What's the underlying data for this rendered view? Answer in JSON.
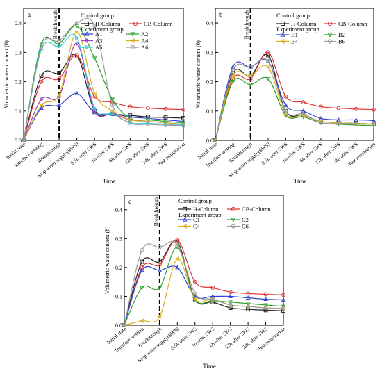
{
  "figure": {
    "x_categories": [
      "Initial state",
      "Interface wetting",
      "Breakthrough",
      "Stop water supply(SWS)",
      "0.5h after SWS",
      "1h after SWS",
      "6h after SWS",
      "12h after SWS",
      "24h after SWS",
      "Test termination"
    ],
    "y_ticks": [
      "0.0",
      "0.1",
      "0.2",
      "0.3",
      "0.4"
    ],
    "ylabel": "Volumetric water content (θ)",
    "xlabel": "Time",
    "breakthrough_label": "Breakthrough",
    "control_title": "Control group",
    "experiment_title": "Experiment group"
  },
  "chart_data": [
    {
      "type": "line",
      "panel_label": "a",
      "categories": [
        "Initial state",
        "Interface wetting",
        "Breakthrough",
        "Stop water supply(SWS)",
        "0.5h after SWS",
        "1h after SWS",
        "6h after SWS",
        "12h after SWS",
        "24h after SWS",
        "Test termination"
      ],
      "ylim": [
        0,
        0.45
      ],
      "ylabel": "Volumetric water content (θ)",
      "xlabel": "Time",
      "breakthrough_at": "Breakthrough",
      "legend_placement": "top-right",
      "series": [
        {
          "name": "H-Column",
          "group": "control",
          "color": "#222222",
          "marker": "square",
          "values": [
            0.0,
            0.22,
            0.23,
            0.29,
            0.1,
            0.09,
            0.085,
            0.08,
            0.078,
            0.076
          ]
        },
        {
          "name": "CB-Column",
          "group": "control",
          "color": "#e03030",
          "marker": "circle",
          "values": [
            0.0,
            0.2,
            0.21,
            0.29,
            0.15,
            0.13,
            0.115,
            0.11,
            0.107,
            0.105
          ]
        },
        {
          "name": "A1",
          "group": "experiment",
          "color": "#2f3fd0",
          "marker": "triangle-up",
          "values": [
            0.0,
            0.11,
            0.12,
            0.16,
            0.095,
            0.09,
            0.08,
            0.075,
            0.07,
            0.065
          ]
        },
        {
          "name": "A2",
          "group": "experiment",
          "color": "#2ca02c",
          "marker": "triangle-down",
          "values": [
            0.0,
            0.33,
            0.33,
            0.39,
            0.28,
            0.14,
            0.075,
            0.07,
            0.065,
            0.06
          ]
        },
        {
          "name": "A3",
          "group": "experiment",
          "color": "#a040c0",
          "marker": "diamond",
          "values": [
            0.0,
            0.14,
            0.15,
            0.33,
            0.1,
            0.09,
            0.07,
            0.065,
            0.06,
            0.055
          ]
        },
        {
          "name": "A4",
          "group": "experiment",
          "color": "#d8b020",
          "marker": "triangle-left",
          "values": [
            0.0,
            0.12,
            0.155,
            0.37,
            0.16,
            0.1,
            0.07,
            0.065,
            0.06,
            0.055
          ]
        },
        {
          "name": "A5",
          "group": "experiment",
          "color": "#30c8d8",
          "marker": "triangle-right",
          "values": [
            0.0,
            0.31,
            0.32,
            0.35,
            0.11,
            0.09,
            0.06,
            0.058,
            0.055,
            0.053
          ]
        },
        {
          "name": "A6",
          "group": "experiment",
          "color": "#999999",
          "marker": "hexagon",
          "values": [
            0.0,
            0.32,
            0.34,
            0.4,
            0.39,
            0.12,
            0.06,
            0.055,
            0.052,
            0.05
          ]
        }
      ]
    },
    {
      "type": "line",
      "panel_label": "b",
      "categories": [
        "Initial state",
        "Interface wetting",
        "Breakthrough",
        "Stop water supply(SWS)",
        "0.5h after SWS",
        "1h after SWS",
        "6h after SWS",
        "12h after SWS",
        "24h after SWS",
        "Test termination"
      ],
      "ylim": [
        0,
        0.45
      ],
      "ylabel": "Volumetric water content (θ)",
      "xlabel": "Time",
      "breakthrough_at": "Breakthrough",
      "legend_placement": "top-right",
      "series": [
        {
          "name": "H-Column",
          "group": "control",
          "color": "#222222",
          "marker": "square",
          "values": [
            0.0,
            0.23,
            0.22,
            0.29,
            0.1,
            0.085,
            0.065,
            0.06,
            0.058,
            0.056
          ]
        },
        {
          "name": "CB-Column",
          "group": "control",
          "color": "#e03030",
          "marker": "circle",
          "values": [
            0.0,
            0.21,
            0.21,
            0.3,
            0.15,
            0.13,
            0.115,
            0.11,
            0.107,
            0.105
          ]
        },
        {
          "name": "B1",
          "group": "experiment",
          "color": "#2f3fd0",
          "marker": "triangle-up",
          "values": [
            0.0,
            0.25,
            0.25,
            0.27,
            0.12,
            0.1,
            0.075,
            0.07,
            0.07,
            0.068
          ]
        },
        {
          "name": "B2",
          "group": "experiment",
          "color": "#2ca02c",
          "marker": "triangle-down",
          "values": [
            0.0,
            0.2,
            0.19,
            0.21,
            0.085,
            0.08,
            0.06,
            0.055,
            0.052,
            0.05
          ]
        },
        {
          "name": "B4",
          "group": "experiment",
          "color": "#d8b020",
          "marker": "triangle-left",
          "values": [
            0.0,
            0.22,
            0.22,
            0.25,
            0.09,
            0.085,
            0.065,
            0.06,
            0.058,
            0.056
          ]
        },
        {
          "name": "B6",
          "group": "experiment",
          "color": "#999999",
          "marker": "hexagon",
          "values": [
            0.0,
            0.24,
            0.25,
            0.27,
            0.1,
            0.09,
            0.06,
            0.058,
            0.056,
            0.055
          ]
        }
      ]
    },
    {
      "type": "line",
      "panel_label": "c",
      "categories": [
        "Initial state",
        "Interface wetting",
        "Breakthrough",
        "Stop water supply(SWS)",
        "0.5h after SWS",
        "1h after SWS",
        "6h after SWS",
        "12h after SWS",
        "24h after SWS",
        "Test termination"
      ],
      "ylim": [
        0,
        0.45
      ],
      "ylabel": "Volumetric water content (θ)",
      "xlabel": "Time",
      "breakthrough_at": "Breakthrough",
      "legend_placement": "top-left",
      "series": [
        {
          "name": "H-Column",
          "group": "control",
          "color": "#222222",
          "marker": "square",
          "values": [
            0.0,
            0.22,
            0.22,
            0.29,
            0.09,
            0.08,
            0.06,
            0.055,
            0.052,
            0.05
          ]
        },
        {
          "name": "CB-Column",
          "group": "control",
          "color": "#e03030",
          "marker": "circle",
          "values": [
            0.0,
            0.2,
            0.21,
            0.295,
            0.15,
            0.13,
            0.115,
            0.11,
            0.107,
            0.105
          ]
        },
        {
          "name": "C1",
          "group": "experiment",
          "color": "#2f3fd0",
          "marker": "triangle-up",
          "values": [
            0.0,
            0.19,
            0.19,
            0.2,
            0.1,
            0.1,
            0.1,
            0.095,
            0.09,
            0.088
          ]
        },
        {
          "name": "C2",
          "group": "experiment",
          "color": "#2ca02c",
          "marker": "triangle-down",
          "values": [
            0.0,
            0.13,
            0.13,
            0.27,
            0.09,
            0.085,
            0.08,
            0.075,
            0.07,
            0.065
          ]
        },
        {
          "name": "C4",
          "group": "experiment",
          "color": "#d8b020",
          "marker": "triangle-left",
          "values": [
            0.0,
            0.015,
            0.03,
            0.23,
            0.09,
            0.09,
            0.07,
            0.065,
            0.06,
            0.058
          ]
        },
        {
          "name": "C6",
          "group": "experiment",
          "color": "#999999",
          "marker": "hexagon",
          "values": [
            0.0,
            0.26,
            0.27,
            0.28,
            0.11,
            0.09,
            0.07,
            0.065,
            0.06,
            0.058
          ]
        }
      ]
    }
  ]
}
